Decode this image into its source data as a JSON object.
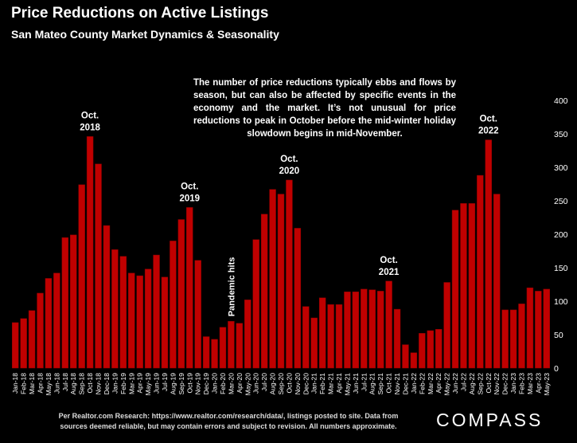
{
  "title": "Price Reductions on Active Listings",
  "subtitle": "San Mateo County Market Dynamics & Seasonality",
  "note": "The number of price reductions typically ebbs and flows by season, but can also be affected by specific events in the economy and the market. It’s not unusual for price reductions to peak in October before the mid-winter holiday slowdown begins in mid-November.",
  "footer": {
    "line1": "Per Realtor.com Research:  https://www.realtor.com/research/data/, listings posted to site. Data from",
    "line2": "sources deemed reliable, but may contain errors and subject to revision. All numbers approximate."
  },
  "logo": "COMPASS",
  "colors": {
    "bar": "#c00000",
    "background": "#000000",
    "text": "#ffffff"
  },
  "chart_data": {
    "type": "bar",
    "categories": [
      "Jan-18",
      "Feb-18",
      "Mar-18",
      "Apr-18",
      "May-18",
      "Jun-18",
      "Jul-18",
      "Aug-18",
      "Sep-18",
      "Oct-18",
      "Nov-18",
      "Dec-18",
      "Jan-19",
      "Feb-19",
      "Mar-19",
      "Apr-19",
      "May-19",
      "Jun-19",
      "Jul-19",
      "Aug-19",
      "Sep-19",
      "Oct-19",
      "Nov-19",
      "Dec-19",
      "Jan-20",
      "Feb-20",
      "Mar-20",
      "Apr-20",
      "May-20",
      "Jun-20",
      "Jul-20",
      "Aug-20",
      "Sep-20",
      "Oct-20",
      "Nov-20",
      "Dec-20",
      "Jan-21",
      "Feb-21",
      "Mar-21",
      "Apr-21",
      "May-21",
      "Jun-21",
      "Jul-21",
      "Aug-21",
      "Sep-21",
      "Oct-21",
      "Nov-21",
      "Dec-21",
      "Jan-22",
      "Feb-22",
      "Mar-22",
      "Apr-22",
      "May-22",
      "Jun-22",
      "Jul-22",
      "Aug-22",
      "Sep-22",
      "Oct-22",
      "Nov-22",
      "Dec-22",
      "Jan-23",
      "Feb-23",
      "Mar-23",
      "Apr-23",
      "May-23"
    ],
    "values": [
      68,
      74,
      86,
      112,
      134,
      142,
      195,
      199,
      274,
      346,
      305,
      213,
      177,
      167,
      142,
      138,
      148,
      169,
      136,
      190,
      222,
      240,
      161,
      47,
      43,
      61,
      70,
      67,
      102,
      192,
      230,
      267,
      260,
      281,
      209,
      92,
      75,
      105,
      95,
      95,
      114,
      114,
      118,
      117,
      115,
      130,
      88,
      35,
      23,
      52,
      56,
      58,
      128,
      236,
      246,
      246,
      288,
      341,
      260,
      87,
      87,
      96,
      120,
      115,
      118
    ],
    "ylim": [
      0,
      400
    ],
    "yticks": [
      0,
      50,
      100,
      150,
      200,
      250,
      300,
      350,
      400
    ],
    "annotations": [
      {
        "lines": [
          "Oct.",
          "2018"
        ],
        "category": "Oct-18",
        "value": 346
      },
      {
        "lines": [
          "Oct.",
          "2019"
        ],
        "category": "Oct-19",
        "value": 240
      },
      {
        "lines": [
          "Oct.",
          "2020"
        ],
        "category": "Oct-20",
        "value": 281
      },
      {
        "lines": [
          "Oct.",
          "2021"
        ],
        "category": "Oct-21",
        "value": 130
      },
      {
        "lines": [
          "Oct.",
          "2022"
        ],
        "category": "Oct-22",
        "value": 341
      },
      {
        "lines": [
          "Pandemic hits"
        ],
        "category": "Mar-20",
        "value": 70,
        "rotated": true
      }
    ]
  }
}
